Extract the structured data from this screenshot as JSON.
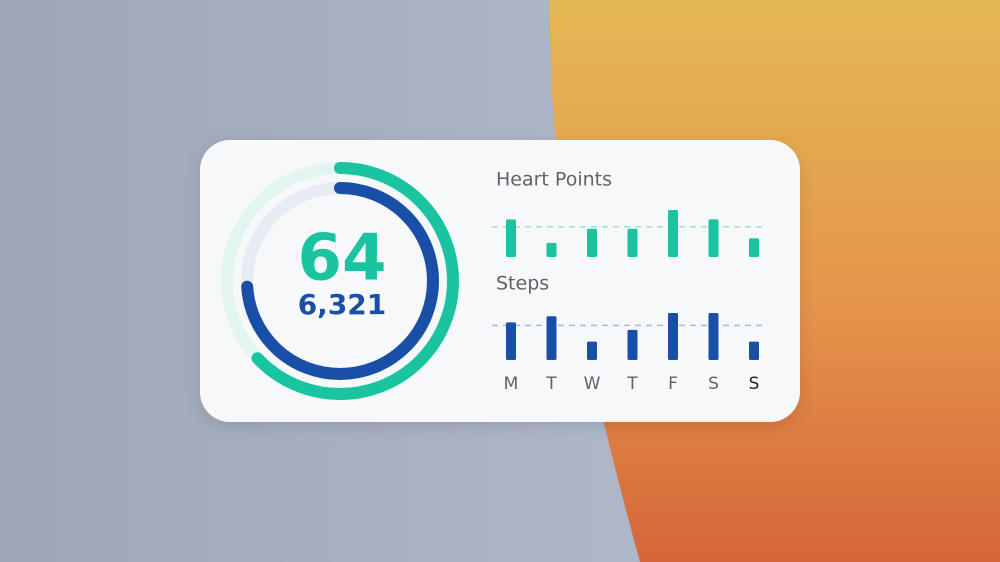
{
  "widget": {
    "heart_points": {
      "value": "64",
      "progress": 0.63,
      "color": "#1bc4a0",
      "track": "#e2f5f1"
    },
    "steps": {
      "value": "6,321",
      "progress": 0.74,
      "color": "#1a4fa8",
      "track": "#e8ebf3"
    },
    "days": [
      "M",
      "T",
      "W",
      "T",
      "F",
      "S",
      "S"
    ],
    "charts": [
      {
        "title": "Heart Points",
        "values": [
          8,
          3,
          6,
          6,
          10,
          8,
          4
        ],
        "ylim": [
          0,
          10
        ],
        "color": "#1bc4a0",
        "avg_color": "#9fe0d2"
      },
      {
        "title": "Steps",
        "values": [
          8000,
          9300,
          3900,
          6400,
          10000,
          10000,
          3900
        ],
        "ylim": [
          0,
          10000
        ],
        "color": "#1a4fa8",
        "avg_color": "#a9b9da"
      }
    ]
  }
}
